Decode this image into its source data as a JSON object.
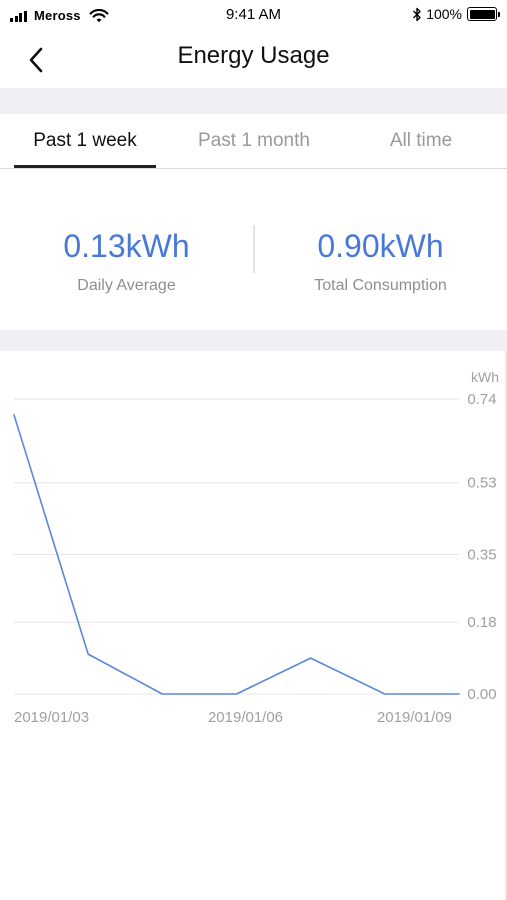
{
  "status_bar": {
    "carrier": "Meross",
    "time": "9:41 AM",
    "battery_percent": "100%"
  },
  "nav": {
    "title": "Energy Usage",
    "back_icon": "chevron-left-icon"
  },
  "tabs": [
    {
      "label": "Past 1 week",
      "active": true
    },
    {
      "label": "Past 1 month",
      "active": false
    },
    {
      "label": "All time",
      "active": false
    }
  ],
  "stats": {
    "daily_average": {
      "value": "0.13kWh",
      "label": "Daily Average"
    },
    "total_consumption": {
      "value": "0.90kWh",
      "label": "Total Consumption"
    }
  },
  "colors": {
    "accent": "#4a78d6",
    "line": "#5b86d9",
    "grid": "#e6e6e6",
    "axis_text": "#a0a0a0"
  },
  "chart_data": {
    "type": "line",
    "unit_label": "kWh",
    "y_ticks": [
      "0.74",
      "0.53",
      "0.35",
      "0.18",
      "0.00"
    ],
    "ylim": [
      0,
      0.74
    ],
    "x_tick_labels": [
      "2019/01/03",
      "2019/01/06",
      "2019/01/09"
    ],
    "x": [
      "2019/01/03",
      "2019/01/04",
      "2019/01/05",
      "2019/01/06",
      "2019/01/07",
      "2019/01/08",
      "2019/01/09"
    ],
    "series": [
      {
        "values": [
          0.7,
          0.1,
          0.0,
          0.0,
          0.09,
          0.0,
          0.0
        ]
      }
    ],
    "grid": true
  }
}
